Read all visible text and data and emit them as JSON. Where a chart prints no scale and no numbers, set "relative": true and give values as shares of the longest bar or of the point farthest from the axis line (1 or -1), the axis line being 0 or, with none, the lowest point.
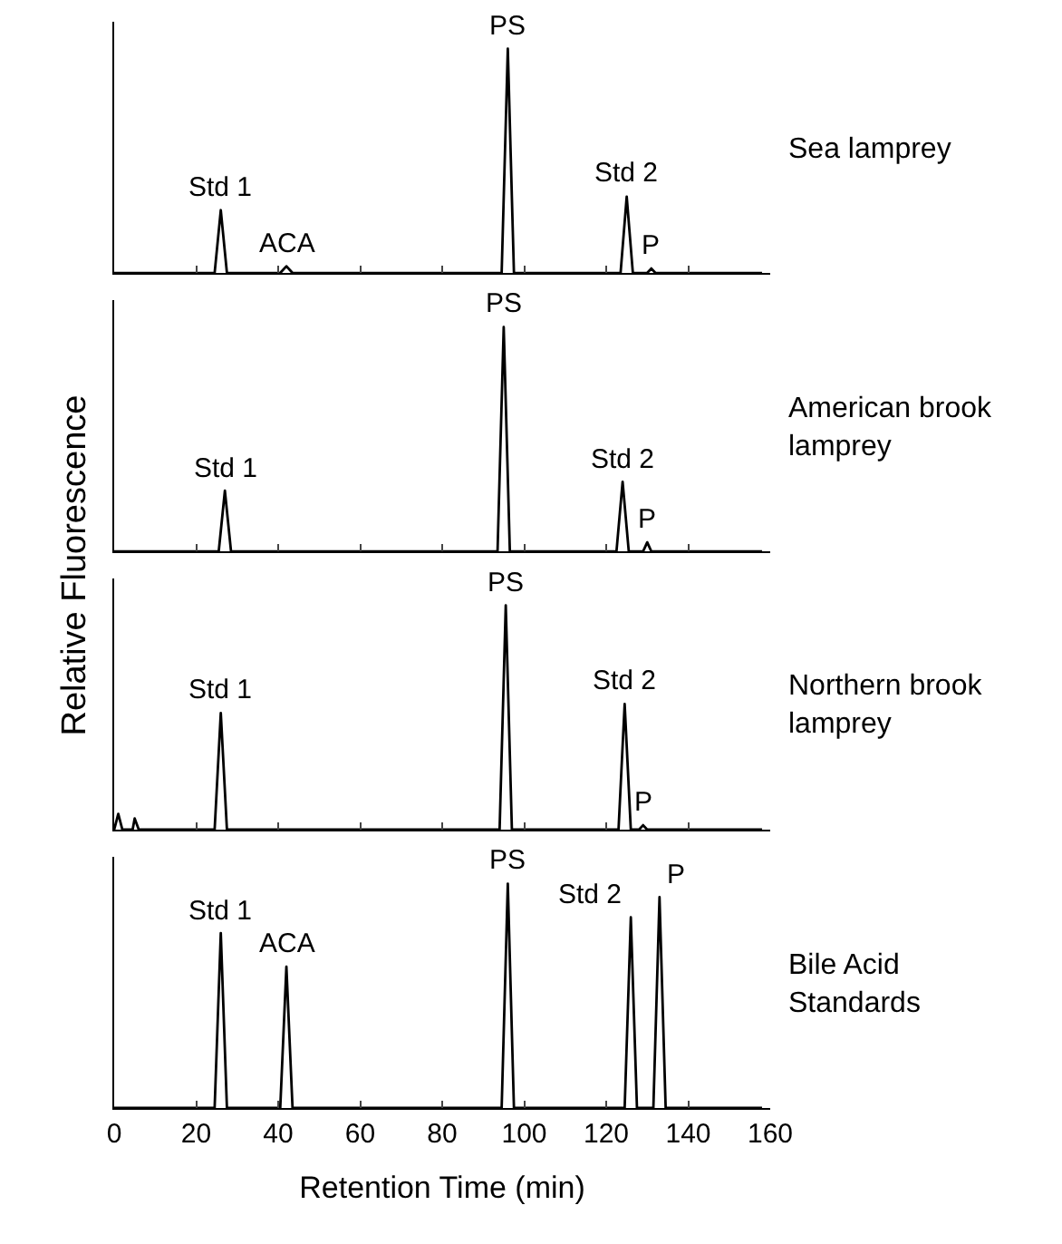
{
  "chart_data": [
    {
      "type": "line",
      "relative": true,
      "grid": false,
      "ylabel": "Relative Fluorescence",
      "xlim": [
        0,
        160
      ],
      "xticks": [
        0,
        20,
        40,
        60,
        80,
        100,
        120,
        140,
        160
      ],
      "tick_labels": false,
      "legend": false,
      "marker": "none",
      "line_style": "solid",
      "series": [
        {
          "color": "#000000",
          "x": [
            0,
            24.5,
            26,
            27.5,
            40.5,
            42,
            43.5,
            94.5,
            96,
            97.5,
            123.5,
            125,
            126.5,
            130,
            131,
            132,
            158
          ],
          "values": [
            0,
            0,
            0.28,
            0,
            0,
            0.03,
            0,
            0,
            1,
            0,
            0,
            0.34,
            0,
            0,
            0.02,
            0,
            0
          ]
        }
      ],
      "annotations": [
        {
          "text": "Std 1",
          "x": 26,
          "y": 0.28
        },
        {
          "text": "ACA",
          "x": 42,
          "y": 0.03
        },
        {
          "text": "PS",
          "x": 96,
          "y": 1
        },
        {
          "text": "Std 2",
          "x": 125,
          "y": 0.34
        },
        {
          "text": "P",
          "x": 131,
          "y": 0.02
        },
        "Sea lamprey"
      ]
    },
    {
      "type": "line",
      "relative": true,
      "grid": false,
      "xlim": [
        0,
        160
      ],
      "xticks": [
        0,
        20,
        40,
        60,
        80,
        100,
        120,
        140,
        160
      ],
      "tick_labels": false,
      "legend": false,
      "marker": "none",
      "line_style": "solid",
      "series": [
        {
          "color": "#000000",
          "x": [
            0,
            25.5,
            27,
            28.5,
            93.5,
            95,
            96.5,
            122.5,
            124,
            125.5,
            129,
            130,
            131,
            158
          ],
          "values": [
            0,
            0,
            0.27,
            0,
            0,
            1,
            0,
            0,
            0.31,
            0,
            0,
            0.04,
            0,
            0
          ]
        }
      ],
      "annotations": [
        {
          "text": "Std 1",
          "x": 27,
          "y": 0.27
        },
        {
          "text": "PS",
          "x": 95,
          "y": 1
        },
        {
          "text": "Std 2",
          "x": 124,
          "y": 0.31
        },
        {
          "text": "P",
          "x": 130,
          "y": 0.04
        },
        "American brook lamprey"
      ]
    },
    {
      "type": "line",
      "relative": true,
      "grid": false,
      "xlim": [
        0,
        160
      ],
      "xticks": [
        0,
        20,
        40,
        60,
        80,
        100,
        120,
        140,
        160
      ],
      "tick_labels": false,
      "legend": false,
      "marker": "none",
      "line_style": "solid",
      "series": [
        {
          "color": "#000000",
          "x": [
            0,
            1,
            2,
            4.5,
            5,
            6,
            24.5,
            26,
            27.5,
            94,
            95.5,
            97,
            123,
            124.5,
            126,
            128,
            129,
            130,
            158
          ],
          "values": [
            0,
            0.07,
            0,
            0,
            0.05,
            0,
            0,
            0.52,
            0,
            0,
            1,
            0,
            0,
            0.56,
            0,
            0,
            0.02,
            0,
            0
          ]
        }
      ],
      "annotations": [
        {
          "text": "Std 1",
          "x": 26,
          "y": 0.52
        },
        {
          "text": "PS",
          "x": 95.5,
          "y": 1
        },
        {
          "text": "Std 2",
          "x": 124.5,
          "y": 0.56
        },
        {
          "text": "P",
          "x": 129,
          "y": 0.02
        },
        "Northern brook lamprey"
      ]
    },
    {
      "type": "line",
      "relative": true,
      "grid": false,
      "xlabel": "Retention Time (min)",
      "xlim": [
        0,
        160
      ],
      "xticks": [
        0,
        20,
        40,
        60,
        80,
        100,
        120,
        140,
        160
      ],
      "tick_labels": "x",
      "legend": false,
      "marker": "none",
      "line_style": "solid",
      "series": [
        {
          "color": "#000000",
          "x": [
            0,
            24.5,
            26,
            27.5,
            40.5,
            42,
            43.5,
            94.5,
            96,
            97.5,
            124.5,
            126,
            127.5,
            131.5,
            133,
            134.5,
            158
          ],
          "values": [
            0,
            0,
            0.78,
            0,
            0,
            0.63,
            0,
            0,
            1,
            0,
            0,
            0.85,
            0,
            0,
            0.94,
            0,
            0
          ]
        }
      ],
      "annotations": [
        {
          "text": "Std 1",
          "x": 26,
          "y": 0.78
        },
        {
          "text": "ACA",
          "x": 42,
          "y": 0.63
        },
        {
          "text": "PS",
          "x": 96,
          "y": 1
        },
        {
          "text": "Std 2",
          "x": 126,
          "y": 0.85
        },
        {
          "text": "P",
          "x": 133,
          "y": 0.94
        },
        "Bile Acid Standards"
      ]
    }
  ]
}
